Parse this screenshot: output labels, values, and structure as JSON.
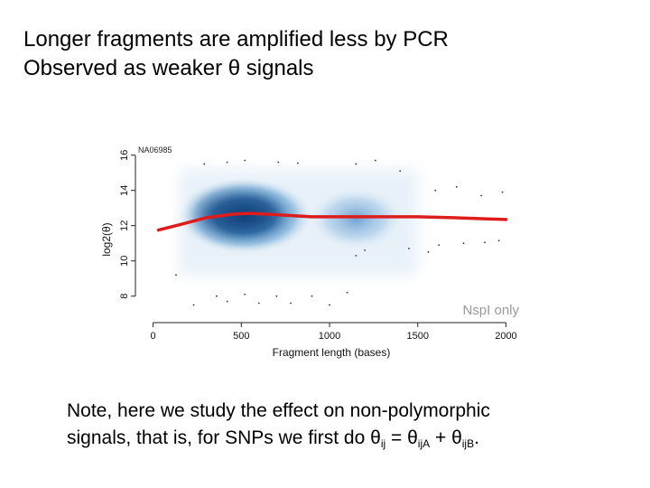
{
  "slide": {
    "title_line1": "Longer fragments are amplified less by PCR",
    "title_line2": "Observed as weaker θ signals",
    "note_line1": "Note, here we study the effect on non-polymorphic",
    "note_line2_prefix": "signals, that is, for SNPs we first do ",
    "theta": "θ",
    "sub_ij": "ij",
    "equals": " = ",
    "sub_ijA": "ijA",
    "plus": " + ",
    "sub_ijB": "ijB",
    "period": "."
  },
  "chart_data": {
    "type": "scatter",
    "title": "NA06985",
    "xlabel": "Fragment length (bases)",
    "ylabel": "log2(θ)",
    "xlim": [
      -90,
      2100
    ],
    "ylim": [
      6.6,
      16.6
    ],
    "x_ticks": [
      0,
      500,
      1000,
      1500,
      2000
    ],
    "x_tick_labels": [
      "0",
      "500",
      "1000",
      "1500",
      "2000"
    ],
    "y_ticks": [
      8,
      10,
      12,
      14,
      16
    ],
    "y_tick_labels": [
      "8",
      "10",
      "12",
      "14",
      "16"
    ],
    "annotation": "NspI only",
    "density_color": "#1a5fa0",
    "fit_color": "#dd1c1c",
    "fit_curve": {
      "x": [
        30,
        150,
        300,
        450,
        550,
        700,
        900,
        1100,
        1300,
        1500,
        1700,
        1900,
        2000
      ],
      "y": [
        11.75,
        12.05,
        12.45,
        12.65,
        12.7,
        12.62,
        12.5,
        12.5,
        12.5,
        12.5,
        12.45,
        12.38,
        12.35
      ]
    },
    "outliers": [
      {
        "x": 290,
        "y": 15.5
      },
      {
        "x": 420,
        "y": 15.6
      },
      {
        "x": 520,
        "y": 15.7
      },
      {
        "x": 710,
        "y": 15.6
      },
      {
        "x": 820,
        "y": 15.55
      },
      {
        "x": 1150,
        "y": 15.5
      },
      {
        "x": 1260,
        "y": 15.7
      },
      {
        "x": 1400,
        "y": 15.1
      },
      {
        "x": 1600,
        "y": 14.0
      },
      {
        "x": 1720,
        "y": 14.2
      },
      {
        "x": 1860,
        "y": 13.7
      },
      {
        "x": 1980,
        "y": 13.9
      },
      {
        "x": 1620,
        "y": 10.9
      },
      {
        "x": 1760,
        "y": 11.0
      },
      {
        "x": 1880,
        "y": 11.05
      },
      {
        "x": 1960,
        "y": 11.15
      },
      {
        "x": 1150,
        "y": 10.3
      },
      {
        "x": 1200,
        "y": 10.6
      },
      {
        "x": 1450,
        "y": 10.7
      },
      {
        "x": 1560,
        "y": 10.5
      },
      {
        "x": 130,
        "y": 9.2
      },
      {
        "x": 230,
        "y": 7.5
      },
      {
        "x": 360,
        "y": 8.0
      },
      {
        "x": 420,
        "y": 7.7
      },
      {
        "x": 520,
        "y": 8.1
      },
      {
        "x": 600,
        "y": 7.6
      },
      {
        "x": 700,
        "y": 8.0
      },
      {
        "x": 780,
        "y": 7.6
      },
      {
        "x": 900,
        "y": 8.0
      },
      {
        "x": 1000,
        "y": 7.5
      },
      {
        "x": 1100,
        "y": 8.2
      }
    ]
  }
}
